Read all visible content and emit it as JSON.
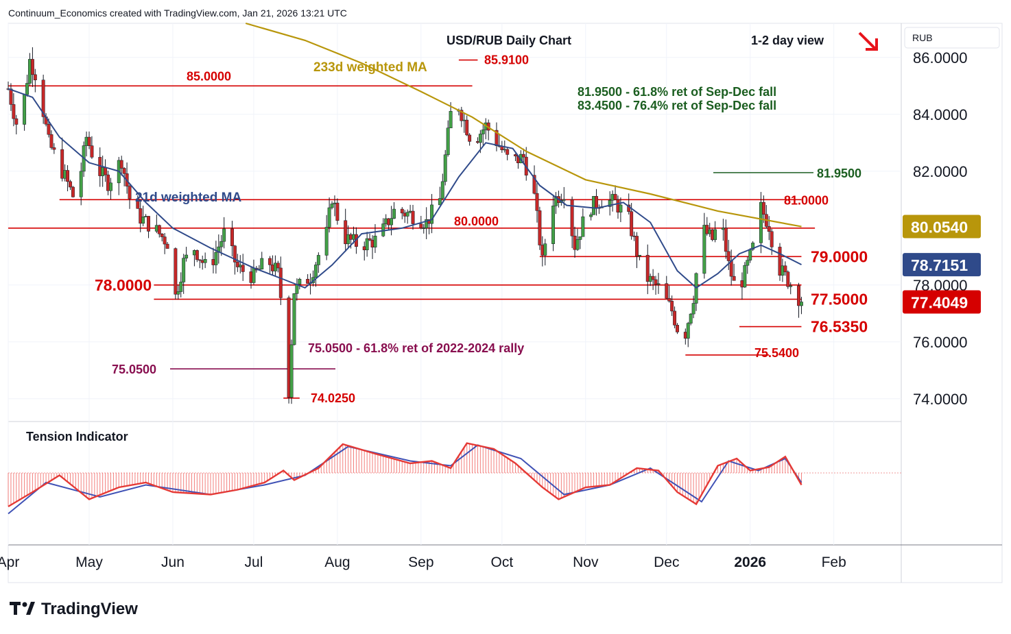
{
  "header": {
    "attribution": "Continuum_Economics created with TradingView.com, Jan 21, 2026 13:21 UTC"
  },
  "chart_title": "USD/RUB Daily Chart",
  "view_label": "1-2 day view",
  "view_arrow_color": "#e8141b",
  "currency_badge": "RUB",
  "brand": {
    "name": "TradingView"
  },
  "colors": {
    "bull": "#43a047",
    "bear": "#c62828",
    "level": "#d50000",
    "ma21": "#2f4a8a",
    "ma233": "#b8960b",
    "fib_green": "#1b5e20",
    "fib_purple": "#880e4f",
    "tension_red": "#ef5350",
    "tension_blue": "#3f51b5"
  },
  "chart_data": {
    "type": "candlestick",
    "y_axis": {
      "ticks": [
        "86.0000",
        "84.0000",
        "82.0000",
        "78.0000",
        "76.0000",
        "74.0000"
      ],
      "range": [
        73.2,
        87.2
      ]
    },
    "x_axis": {
      "ticks": [
        "Apr",
        "May",
        "Jun",
        "Jul",
        "Aug",
        "Sep",
        "Oct",
        "Nov",
        "Dec",
        "2026",
        "Feb"
      ],
      "range": [
        "2025-04-01",
        "2026-02-26"
      ]
    },
    "price_labels": [
      {
        "text": "80.0540",
        "value": 80.054,
        "color": "#b8960b"
      },
      {
        "text": "78.7151",
        "value": 78.7151,
        "color": "#2f4a8a"
      },
      {
        "text": "77.4049",
        "value": 77.4049,
        "color": "#d50000"
      }
    ],
    "levels": [
      {
        "value": 85.0,
        "label": "85.0000",
        "from": "2025-04-01",
        "to": "2025-09-20"
      },
      {
        "value": 81.0,
        "label": "81.0000",
        "from": "2025-04-20",
        "to": "2026-01-20"
      },
      {
        "value": 80.0,
        "label": "80.0000",
        "from": "2025-04-01",
        "to": "2026-01-25"
      },
      {
        "value": 79.0,
        "label": "79.0000",
        "from": "2025-10-15",
        "to": "2026-01-20"
      },
      {
        "value": 78.0,
        "label": "78.0000",
        "from": "2025-05-25",
        "to": "2026-01-20"
      },
      {
        "value": 77.5,
        "label": "77.5000",
        "from": "2025-05-25",
        "to": "2026-01-20"
      },
      {
        "value": 76.535,
        "label": "76.5350",
        "from": "2025-12-28",
        "to": "2026-01-20"
      },
      {
        "value": 75.54,
        "label": "75.5400",
        "from": "2025-12-08",
        "to": "2026-01-08"
      },
      {
        "value": 85.91,
        "label": "85.9100",
        "from": "2025-09-15",
        "to": "2025-09-22"
      },
      {
        "value": 74.025,
        "label": "74.0250",
        "from": "2025-07-12",
        "to": "2025-07-18"
      }
    ],
    "fib_levels": [
      {
        "value": 81.95,
        "label": "81.9500",
        "color": "#1b5e20"
      },
      {
        "value": 75.05,
        "label": "75.0500",
        "color": "#880e4f"
      }
    ],
    "annotations": [
      "81.9500 - 61.8% ret of Sep-Dec fall",
      "83.4500 - 76.4% ret of Sep-Dec fall",
      "75.0500 - 61.8% ret of 2022-2024 rally",
      "233d weighted MA",
      "21d weighted MA"
    ],
    "close_path": [
      [
        "2025-04-01",
        84.9
      ],
      [
        "2025-04-05",
        83.3
      ],
      [
        "2025-04-09",
        85.9
      ],
      [
        "2025-04-12",
        85.2
      ],
      [
        "2025-04-16",
        83.0
      ],
      [
        "2025-04-22",
        81.8
      ],
      [
        "2025-04-26",
        80.9
      ],
      [
        "2025-04-30",
        83.2
      ],
      [
        "2025-05-04",
        82.1
      ],
      [
        "2025-05-08",
        81.6
      ],
      [
        "2025-05-13",
        82.4
      ],
      [
        "2025-05-17",
        80.6
      ],
      [
        "2025-05-21",
        80.3
      ],
      [
        "2025-05-26",
        79.9
      ],
      [
        "2025-05-30",
        79.5
      ],
      [
        "2025-06-01",
        77.2
      ],
      [
        "2025-06-05",
        78.8
      ],
      [
        "2025-06-09",
        79.3
      ],
      [
        "2025-06-14",
        78.5
      ],
      [
        "2025-06-20",
        79.8
      ],
      [
        "2025-06-25",
        78.6
      ],
      [
        "2025-07-01",
        78.3
      ],
      [
        "2025-07-06",
        78.9
      ],
      [
        "2025-07-10",
        78.4
      ],
      [
        "2025-07-12",
        76.8
      ],
      [
        "2025-07-14",
        74.3
      ],
      [
        "2025-07-16",
        77.8
      ],
      [
        "2025-07-22",
        78.3
      ],
      [
        "2025-07-28",
        79.8
      ],
      [
        "2025-07-30",
        81.1
      ],
      [
        "2025-08-03",
        79.7
      ],
      [
        "2025-08-09",
        79.4
      ],
      [
        "2025-08-16",
        79.6
      ],
      [
        "2025-08-22",
        80.6
      ],
      [
        "2025-08-28",
        80.5
      ],
      [
        "2025-09-03",
        80.2
      ],
      [
        "2025-09-08",
        81.0
      ],
      [
        "2025-09-12",
        84.0
      ],
      [
        "2025-09-15",
        84.3
      ],
      [
        "2025-09-20",
        83.0
      ],
      [
        "2025-09-25",
        83.6
      ],
      [
        "2025-09-30",
        82.9
      ],
      [
        "2025-10-04",
        82.3
      ],
      [
        "2025-10-09",
        82.5
      ],
      [
        "2025-10-13",
        81.1
      ],
      [
        "2025-10-16",
        78.8
      ],
      [
        "2025-10-19",
        80.9
      ],
      [
        "2025-10-24",
        81.3
      ],
      [
        "2025-10-28",
        79.4
      ],
      [
        "2025-11-02",
        80.7
      ],
      [
        "2025-11-07",
        81.0
      ],
      [
        "2025-11-12",
        80.9
      ],
      [
        "2025-11-17",
        80.3
      ],
      [
        "2025-11-22",
        78.4
      ],
      [
        "2025-11-28",
        77.9
      ],
      [
        "2025-12-03",
        77.1
      ],
      [
        "2025-12-07",
        75.9
      ],
      [
        "2025-12-11",
        77.6
      ],
      [
        "2025-12-14",
        80.0
      ],
      [
        "2025-12-18",
        79.6
      ],
      [
        "2025-12-21",
        80.4
      ],
      [
        "2025-12-24",
        78.7
      ],
      [
        "2025-12-27",
        77.7
      ],
      [
        "2025-12-30",
        78.4
      ],
      [
        "2026-01-02",
        79.3
      ],
      [
        "2026-01-05",
        80.7
      ],
      [
        "2026-01-08",
        80.1
      ],
      [
        "2026-01-11",
        78.7
      ],
      [
        "2026-01-14",
        78.3
      ],
      [
        "2026-01-17",
        77.9
      ],
      [
        "2026-01-20",
        77.4049
      ]
    ],
    "ma21": [
      [
        "2025-04-01",
        84.9
      ],
      [
        "2025-04-10",
        84.6
      ],
      [
        "2025-04-20",
        83.2
      ],
      [
        "2025-05-01",
        82.3
      ],
      [
        "2025-05-12",
        82.0
      ],
      [
        "2025-05-22",
        80.9
      ],
      [
        "2025-06-01",
        80.0
      ],
      [
        "2025-06-15",
        79.3
      ],
      [
        "2025-07-01",
        78.6
      ],
      [
        "2025-07-12",
        78.2
      ],
      [
        "2025-07-20",
        77.9
      ],
      [
        "2025-07-30",
        78.7
      ],
      [
        "2025-08-10",
        79.8
      ],
      [
        "2025-08-25",
        80.0
      ],
      [
        "2025-09-05",
        80.3
      ],
      [
        "2025-09-15",
        81.8
      ],
      [
        "2025-09-25",
        83.0
      ],
      [
        "2025-10-05",
        82.8
      ],
      [
        "2025-10-15",
        81.5
      ],
      [
        "2025-10-25",
        80.8
      ],
      [
        "2025-11-05",
        80.7
      ],
      [
        "2025-11-15",
        80.9
      ],
      [
        "2025-11-25",
        80.2
      ],
      [
        "2025-12-05",
        78.5
      ],
      [
        "2025-12-12",
        77.9
      ],
      [
        "2025-12-20",
        78.4
      ],
      [
        "2025-12-28",
        79.1
      ],
      [
        "2026-01-05",
        79.4
      ],
      [
        "2026-01-12",
        79.1
      ],
      [
        "2026-01-20",
        78.7151
      ]
    ],
    "ma233": [
      [
        "2025-06-28",
        87.2
      ],
      [
        "2025-07-20",
        86.6
      ],
      [
        "2025-08-10",
        85.8
      ],
      [
        "2025-09-01",
        84.8
      ],
      [
        "2025-09-20",
        83.9
      ],
      [
        "2025-10-10",
        82.7
      ],
      [
        "2025-11-01",
        81.7
      ],
      [
        "2025-11-25",
        81.2
      ],
      [
        "2025-12-20",
        80.6
      ],
      [
        "2026-01-20",
        80.054
      ]
    ],
    "tension_indicator": {
      "title": "Tension Indicator",
      "series": [
        [
          "2025-04-01",
          -0.7
        ],
        [
          "2025-04-10",
          -0.4
        ],
        [
          "2025-04-20",
          -0.05
        ],
        [
          "2025-05-01",
          -0.55
        ],
        [
          "2025-05-12",
          -0.3
        ],
        [
          "2025-05-22",
          -0.2
        ],
        [
          "2025-06-01",
          -0.4
        ],
        [
          "2025-06-15",
          -0.45
        ],
        [
          "2025-06-25",
          -0.35
        ],
        [
          "2025-07-05",
          -0.2
        ],
        [
          "2025-07-12",
          0.05
        ],
        [
          "2025-07-16",
          -0.15
        ],
        [
          "2025-07-25",
          0.1
        ],
        [
          "2025-08-03",
          0.6
        ],
        [
          "2025-08-15",
          0.4
        ],
        [
          "2025-08-28",
          0.2
        ],
        [
          "2025-09-05",
          0.25
        ],
        [
          "2025-09-12",
          0.1
        ],
        [
          "2025-09-18",
          0.62
        ],
        [
          "2025-09-28",
          0.5
        ],
        [
          "2025-10-06",
          0.2
        ],
        [
          "2025-10-16",
          -0.3
        ],
        [
          "2025-10-22",
          -0.55
        ],
        [
          "2025-11-01",
          -0.3
        ],
        [
          "2025-11-10",
          -0.25
        ],
        [
          "2025-11-20",
          0.1
        ],
        [
          "2025-11-28",
          0.05
        ],
        [
          "2025-12-05",
          -0.4
        ],
        [
          "2025-12-12",
          -0.65
        ],
        [
          "2025-12-20",
          0.15
        ],
        [
          "2025-12-27",
          0.3
        ],
        [
          "2026-01-01",
          0.05
        ],
        [
          "2026-01-08",
          0.12
        ],
        [
          "2026-01-14",
          0.34
        ],
        [
          "2026-01-20",
          -0.25
        ]
      ],
      "signal": [
        [
          "2025-04-01",
          -0.85
        ],
        [
          "2025-04-15",
          -0.2
        ],
        [
          "2025-05-05",
          -0.5
        ],
        [
          "2025-05-22",
          -0.25
        ],
        [
          "2025-06-15",
          -0.45
        ],
        [
          "2025-07-05",
          -0.25
        ],
        [
          "2025-07-20",
          -0.05
        ],
        [
          "2025-08-05",
          0.55
        ],
        [
          "2025-08-28",
          0.25
        ],
        [
          "2025-09-12",
          0.15
        ],
        [
          "2025-09-22",
          0.58
        ],
        [
          "2025-10-08",
          0.3
        ],
        [
          "2025-10-24",
          -0.45
        ],
        [
          "2025-11-10",
          -0.25
        ],
        [
          "2025-11-25",
          0.1
        ],
        [
          "2025-12-14",
          -0.6
        ],
        [
          "2025-12-24",
          0.25
        ],
        [
          "2026-01-04",
          0.05
        ],
        [
          "2026-01-14",
          0.3
        ],
        [
          "2026-01-20",
          -0.2
        ]
      ]
    }
  }
}
